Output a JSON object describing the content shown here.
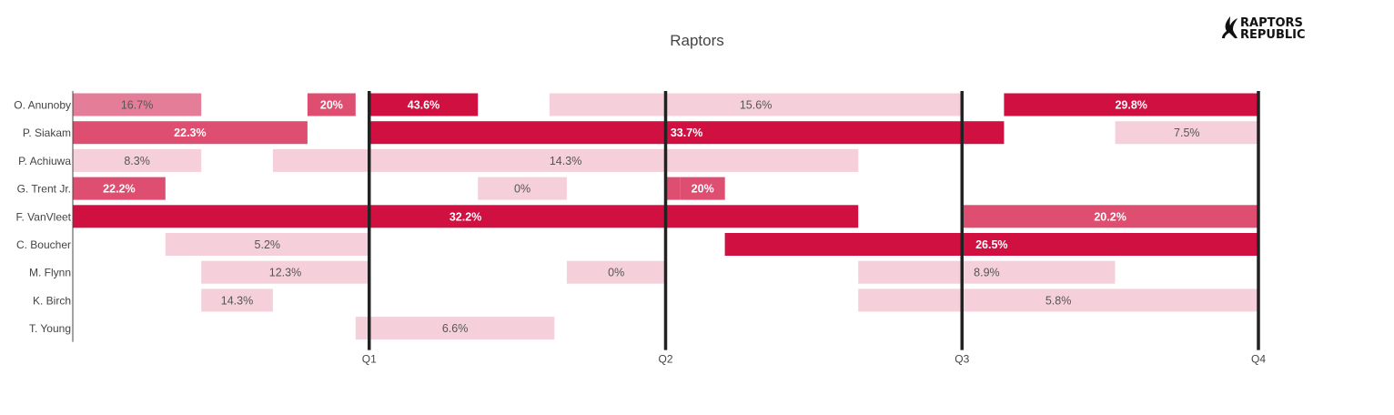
{
  "chart_data": {
    "type": "bar",
    "orientation": "horizontal",
    "title": "Raptors",
    "logo": "RAPTORS REPUBLIC",
    "players": [
      "O. Anunoby",
      "P. Siakam",
      "P. Achiuwa",
      "G. Trent Jr.",
      "F. VanVleet",
      "C. Boucher",
      "M. Flynn",
      "K. Birch",
      "T. Young"
    ],
    "x_ticks": [
      {
        "label": "Q1",
        "value": 12
      },
      {
        "label": "Q2",
        "value": 24
      },
      {
        "label": "Q3",
        "value": 36
      },
      {
        "label": "Q4",
        "value": 48
      }
    ],
    "xlim": [
      0,
      48
    ],
    "x_unit": "game minutes",
    "color_scale": {
      "low": "#f5d0da",
      "mid": "#de4e70",
      "high": "#cf1041"
    },
    "stints": [
      {
        "player": "O. Anunoby",
        "start": 0,
        "end": 5.2,
        "pct": 16.7,
        "label": "16.7%",
        "shade": "medium"
      },
      {
        "player": "O. Anunoby",
        "start": 9.5,
        "end": 11.45,
        "pct": 20,
        "label": "20%",
        "shade": "mid"
      },
      {
        "player": "O. Anunoby",
        "start": 12,
        "end": 16.4,
        "pct": 43.6,
        "label": "43.6%",
        "shade": "high"
      },
      {
        "player": "O. Anunoby",
        "start": 19.3,
        "end": 36,
        "pct": 15.6,
        "label": "15.6%",
        "shade": "low"
      },
      {
        "player": "O. Anunoby",
        "start": 37.7,
        "end": 48,
        "pct": 29.8,
        "label": "29.8%",
        "shade": "high"
      },
      {
        "player": "P. Siakam",
        "start": 0,
        "end": 9.5,
        "pct": 22.3,
        "label": "22.3%",
        "shade": "mid"
      },
      {
        "player": "P. Siakam",
        "start": 12,
        "end": 37.7,
        "pct": 33.7,
        "label": "33.7%",
        "shade": "high"
      },
      {
        "player": "P. Siakam",
        "start": 42.2,
        "end": 48,
        "pct": 7.5,
        "label": "7.5%",
        "shade": "low"
      },
      {
        "player": "P. Achiuwa",
        "start": 0,
        "end": 5.2,
        "pct": 8.3,
        "label": "8.3%",
        "shade": "low"
      },
      {
        "player": "P. Achiuwa",
        "start": 8.1,
        "end": 31.8,
        "pct": 14.3,
        "label": "14.3%",
        "shade": "low"
      },
      {
        "player": "G. Trent Jr.",
        "start": 0,
        "end": 3.75,
        "pct": 22.2,
        "label": "22.2%",
        "shade": "mid"
      },
      {
        "player": "G. Trent Jr.",
        "start": 16.4,
        "end": 20,
        "pct": 0,
        "label": "0%",
        "shade": "low"
      },
      {
        "player": "G. Trent Jr.",
        "start": 24,
        "end": 24.6,
        "pct": null,
        "label": "",
        "shade": "mid"
      },
      {
        "player": "G. Trent Jr.",
        "start": 24.6,
        "end": 26.4,
        "pct": 20,
        "label": "20%",
        "shade": "mid",
        "label_at": 24.6
      },
      {
        "player": "F. VanVleet",
        "start": 0,
        "end": 31.8,
        "pct": 32.2,
        "label": "32.2%",
        "shade": "high"
      },
      {
        "player": "F. VanVleet",
        "start": 36,
        "end": 48,
        "pct": 20.2,
        "label": "20.2%",
        "shade": "mid"
      },
      {
        "player": "C. Boucher",
        "start": 3.75,
        "end": 12,
        "pct": 5.2,
        "label": "5.2%",
        "shade": "low"
      },
      {
        "player": "C. Boucher",
        "start": 26.4,
        "end": 48,
        "pct": 26.5,
        "label": "26.5%",
        "shade": "high"
      },
      {
        "player": "M. Flynn",
        "start": 5.2,
        "end": 12,
        "pct": 12.3,
        "label": "12.3%",
        "shade": "low"
      },
      {
        "player": "M. Flynn",
        "start": 20,
        "end": 24,
        "pct": 0,
        "label": "0%",
        "shade": "low"
      },
      {
        "player": "M. Flynn",
        "start": 31.8,
        "end": 42.2,
        "pct": 8.9,
        "label": "8.9%",
        "shade": "low"
      },
      {
        "player": "K. Birch",
        "start": 5.2,
        "end": 8.1,
        "pct": 14.3,
        "label": "14.3%",
        "shade": "low"
      },
      {
        "player": "K. Birch",
        "start": 31.8,
        "end": 48,
        "pct": 5.8,
        "label": "5.8%",
        "shade": "low"
      },
      {
        "player": "T. Young",
        "start": 11.45,
        "end": 19.5,
        "pct": 6.6,
        "label": "6.6%",
        "shade": "low"
      }
    ]
  }
}
